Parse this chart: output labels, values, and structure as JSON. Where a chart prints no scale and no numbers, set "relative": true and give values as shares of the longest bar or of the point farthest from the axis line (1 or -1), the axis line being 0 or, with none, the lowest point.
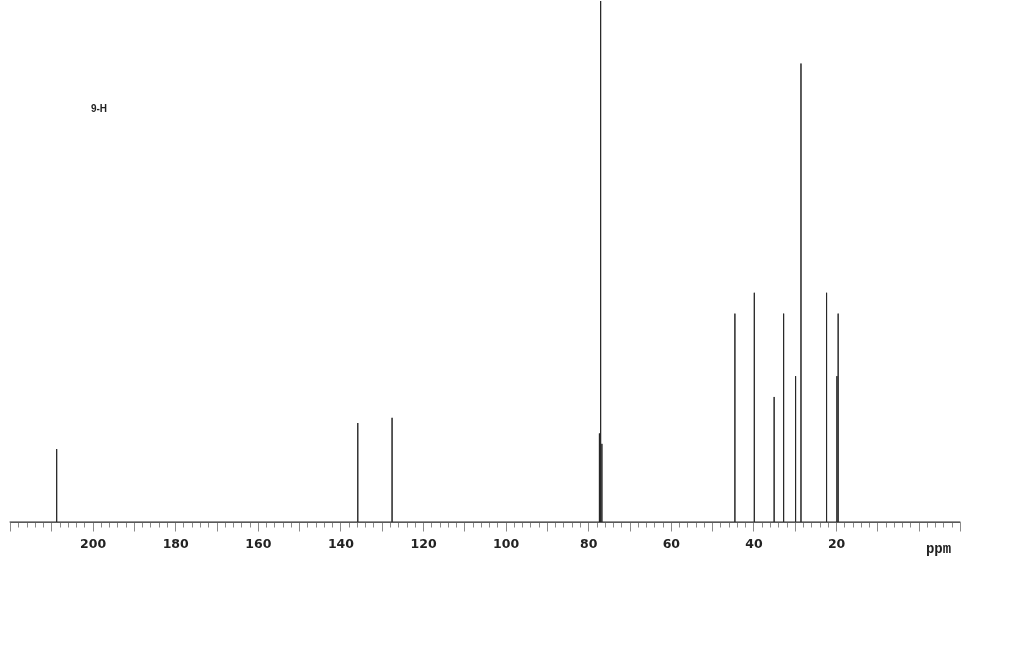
{
  "chart_data": {
    "type": "line",
    "relative": true,
    "color": "#262626",
    "marker": "none",
    "line_style": "solid",
    "grid": false,
    "xlabel": "ppm",
    "annotations": [
      "9-H"
    ],
    "xlim": [
      220,
      -10
    ],
    "xticks": [
      {
        "value": 220,
        "label": null
      },
      {
        "value": 218,
        "label": null
      },
      {
        "value": 216,
        "label": null
      },
      {
        "value": 214,
        "label": null
      },
      {
        "value": 212,
        "label": null
      },
      {
        "value": 210,
        "label": null
      },
      {
        "value": 208,
        "label": null
      },
      {
        "value": 206,
        "label": null
      },
      {
        "value": 204,
        "label": null
      },
      {
        "value": 202,
        "label": null
      },
      200,
      {
        "value": 198,
        "label": null
      },
      {
        "value": 196,
        "label": null
      },
      {
        "value": 194,
        "label": null
      },
      {
        "value": 192,
        "label": null
      },
      {
        "value": 190,
        "label": null
      },
      {
        "value": 188,
        "label": null
      },
      {
        "value": 186,
        "label": null
      },
      {
        "value": 184,
        "label": null
      },
      {
        "value": 182,
        "label": null
      },
      180,
      {
        "value": 178,
        "label": null
      },
      {
        "value": 176,
        "label": null
      },
      {
        "value": 174,
        "label": null
      },
      {
        "value": 172,
        "label": null
      },
      {
        "value": 170,
        "label": null
      },
      {
        "value": 168,
        "label": null
      },
      {
        "value": 166,
        "label": null
      },
      {
        "value": 164,
        "label": null
      },
      {
        "value": 162,
        "label": null
      },
      160,
      {
        "value": 158,
        "label": null
      },
      {
        "value": 156,
        "label": null
      },
      {
        "value": 154,
        "label": null
      },
      {
        "value": 152,
        "label": null
      },
      {
        "value": 150,
        "label": null
      },
      {
        "value": 148,
        "label": null
      },
      {
        "value": 146,
        "label": null
      },
      {
        "value": 144,
        "label": null
      },
      {
        "value": 142,
        "label": null
      },
      140,
      {
        "value": 138,
        "label": null
      },
      {
        "value": 136,
        "label": null
      },
      {
        "value": 134,
        "label": null
      },
      {
        "value": 132,
        "label": null
      },
      {
        "value": 130,
        "label": null
      },
      {
        "value": 128,
        "label": null
      },
      {
        "value": 126,
        "label": null
      },
      {
        "value": 124,
        "label": null
      },
      {
        "value": 122,
        "label": null
      },
      120,
      {
        "value": 118,
        "label": null
      },
      {
        "value": 116,
        "label": null
      },
      {
        "value": 114,
        "label": null
      },
      {
        "value": 112,
        "label": null
      },
      {
        "value": 110,
        "label": null
      },
      {
        "value": 108,
        "label": null
      },
      {
        "value": 106,
        "label": null
      },
      {
        "value": 104,
        "label": null
      },
      {
        "value": 102,
        "label": null
      },
      100,
      {
        "value": 98,
        "label": null
      },
      {
        "value": 96,
        "label": null
      },
      {
        "value": 94,
        "label": null
      },
      {
        "value": 92,
        "label": null
      },
      {
        "value": 90,
        "label": null
      },
      {
        "value": 88,
        "label": null
      },
      {
        "value": 86,
        "label": null
      },
      {
        "value": 84,
        "label": null
      },
      {
        "value": 82,
        "label": null
      },
      80,
      {
        "value": 78,
        "label": null
      },
      {
        "value": 76,
        "label": null
      },
      {
        "value": 74,
        "label": null
      },
      {
        "value": 72,
        "label": null
      },
      {
        "value": 70,
        "label": null
      },
      {
        "value": 68,
        "label": null
      },
      {
        "value": 66,
        "label": null
      },
      {
        "value": 64,
        "label": null
      },
      {
        "value": 62,
        "label": null
      },
      60,
      {
        "value": 58,
        "label": null
      },
      {
        "value": 56,
        "label": null
      },
      {
        "value": 54,
        "label": null
      },
      {
        "value": 52,
        "label": null
      },
      {
        "value": 50,
        "label": null
      },
      {
        "value": 48,
        "label": null
      },
      {
        "value": 46,
        "label": null
      },
      {
        "value": 44,
        "label": null
      },
      {
        "value": 42,
        "label": null
      },
      40,
      {
        "value": 38,
        "label": null
      },
      {
        "value": 36,
        "label": null
      },
      {
        "value": 34,
        "label": null
      },
      {
        "value": 32,
        "label": null
      },
      {
        "value": 30,
        "label": null
      },
      {
        "value": 28,
        "label": null
      },
      {
        "value": 26,
        "label": null
      },
      {
        "value": 24,
        "label": null
      },
      {
        "value": 22,
        "label": null
      },
      20,
      {
        "value": 18,
        "label": null
      },
      {
        "value": 16,
        "label": null
      },
      {
        "value": 14,
        "label": null
      },
      {
        "value": 12,
        "label": null
      },
      {
        "value": 10,
        "label": null
      },
      {
        "value": 8,
        "label": null
      },
      {
        "value": 6,
        "label": null
      },
      {
        "value": 4,
        "label": null
      },
      {
        "value": 2,
        "label": null
      },
      {
        "value": 0,
        "label": null
      },
      {
        "value": -2,
        "label": null
      },
      {
        "value": -4,
        "label": null
      },
      {
        "value": -6,
        "label": null
      },
      {
        "value": -8,
        "label": null
      },
      {
        "value": -10,
        "label": null
      }
    ],
    "x": [
      220,
      208.7,
      208.7,
      208.7,
      135.8,
      135.8,
      135.8,
      127.5,
      127.5,
      127.5,
      77.3,
      77.3,
      77.3,
      77.0,
      77.0,
      77.0,
      76.7,
      76.7,
      76.7,
      44.5,
      44.5,
      44.5,
      39.8,
      39.8,
      39.8,
      35.0,
      35.0,
      35.0,
      32.7,
      32.7,
      32.7,
      29.8,
      29.8,
      29.8,
      28.5,
      28.5,
      28.5,
      22.3,
      22.3,
      22.3,
      19.8,
      19.8,
      19.8,
      19.5,
      19.5,
      19.5,
      -10
    ],
    "values": [
      0,
      0,
      0.14,
      0,
      0,
      0.19,
      0,
      0,
      0.2,
      0,
      0,
      0.17,
      0,
      0,
      1,
      0,
      0,
      0.15,
      0,
      0,
      0.4,
      0,
      0,
      0.44,
      0,
      0,
      0.24,
      0,
      0,
      0.4,
      0,
      0,
      0.28,
      0,
      0,
      0.88,
      0,
      0,
      0.44,
      0,
      0,
      0.28,
      0,
      0,
      0.4,
      0,
      0
    ]
  }
}
